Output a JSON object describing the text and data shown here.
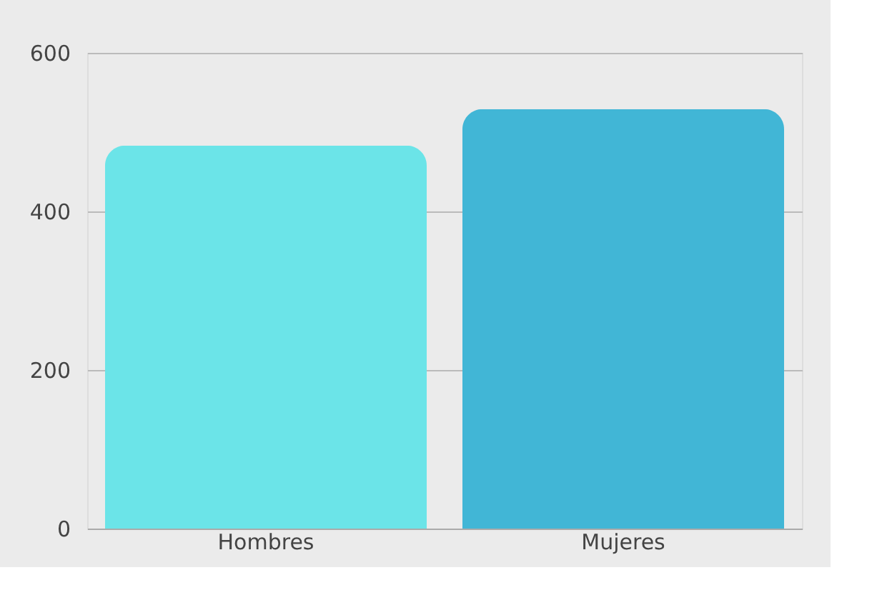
{
  "chart_data": {
    "type": "bar",
    "categories": [
      "Hombres",
      "Mujeres"
    ],
    "values": [
      483,
      529
    ],
    "colors": [
      "#6be4e8",
      "#41b6d6"
    ],
    "ylim": [
      0,
      600
    ],
    "yticks": [
      0,
      200,
      400,
      600
    ],
    "grid": "y",
    "legend": false
  }
}
